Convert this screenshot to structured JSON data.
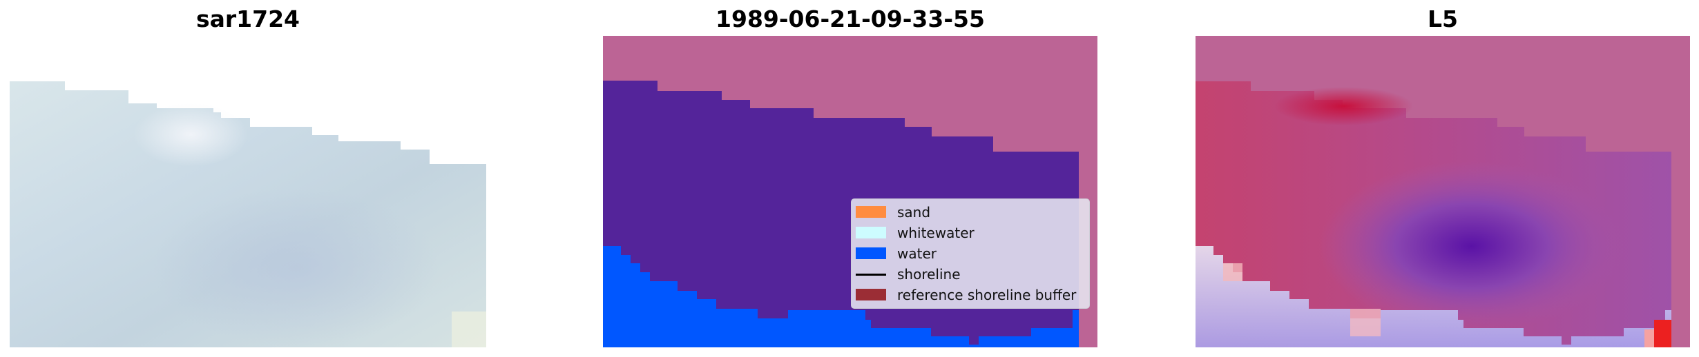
{
  "panels": [
    {
      "title": "sar1724"
    },
    {
      "title": "1989-06-21-09-33-55"
    },
    {
      "title": "L5"
    }
  ],
  "legend": {
    "items": [
      {
        "label": "sand",
        "kind": "patch",
        "color": "#ff8c40"
      },
      {
        "label": "whitewater",
        "kind": "patch",
        "color": "#cdfcff"
      },
      {
        "label": "water",
        "kind": "patch",
        "color": "#0057ff"
      },
      {
        "label": "shoreline",
        "kind": "line",
        "color": "#000000"
      },
      {
        "label": "reference shoreline buffer",
        "kind": "patch",
        "color": "#9b2d35"
      }
    ]
  },
  "colors": {
    "land": "#bc6495",
    "water_class": "#54249a",
    "shallow_water": "#0057ff"
  }
}
